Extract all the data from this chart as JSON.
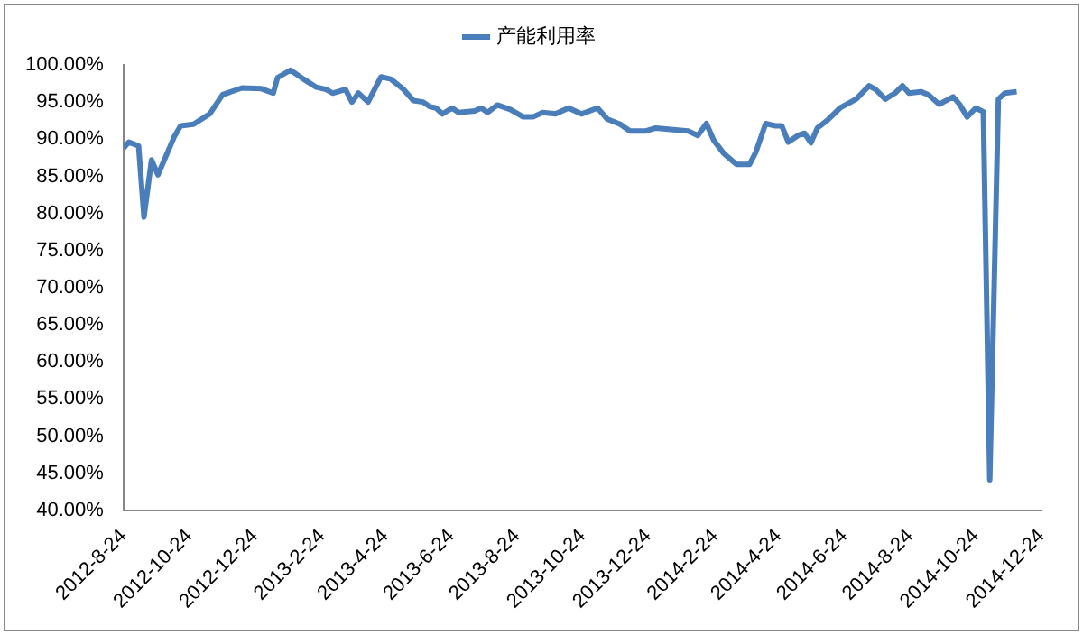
{
  "chart_data": {
    "type": "line",
    "legend": "top",
    "grid": false,
    "marker": "none",
    "line_style": "solid",
    "x": [
      "2012-08-24",
      "2012-08-29",
      "2012-09-07",
      "2012-09-12",
      "2012-09-19",
      "2012-09-25",
      "2012-10-10",
      "2012-10-16",
      "2012-10-28",
      "2012-11-12",
      "2012-11-24",
      "2012-12-12",
      "2012-12-30",
      "2013-01-10",
      "2013-01-14",
      "2013-01-26",
      "2013-02-07",
      "2013-02-19",
      "2013-02-28",
      "2013-03-06",
      "2013-03-18",
      "2013-03-24",
      "2013-03-30",
      "2013-04-08",
      "2013-04-20",
      "2013-04-29",
      "2013-05-11",
      "2013-05-20",
      "2013-05-29",
      "2013-06-04",
      "2013-06-10",
      "2013-06-16",
      "2013-06-25",
      "2013-07-01",
      "2013-07-16",
      "2013-07-22",
      "2013-07-28",
      "2013-08-06",
      "2013-08-18",
      "2013-08-30",
      "2013-09-08",
      "2013-09-17",
      "2013-09-29",
      "2013-10-11",
      "2013-10-23",
      "2013-11-07",
      "2013-11-16",
      "2013-11-28",
      "2013-12-07",
      "2013-12-22",
      "2013-12-31",
      "2014-01-30",
      "2014-02-08",
      "2014-02-16",
      "2014-02-23",
      "2014-03-04",
      "2014-03-16",
      "2014-03-28",
      "2014-04-03",
      "2014-04-12",
      "2014-04-21",
      "2014-04-27",
      "2014-05-03",
      "2014-05-12",
      "2014-05-18",
      "2014-05-24",
      "2014-05-30",
      "2014-06-08",
      "2014-06-20",
      "2014-07-05",
      "2014-07-17",
      "2014-07-23",
      "2014-08-01",
      "2014-08-10",
      "2014-08-17",
      "2014-08-23",
      "2014-09-03",
      "2014-09-10",
      "2014-09-20",
      "2014-10-03",
      "2014-10-09",
      "2014-10-16",
      "2014-10-24",
      "2014-10-31",
      "2014-11-06",
      "2014-11-14",
      "2014-11-20",
      "2014-12-01"
    ],
    "series": [
      {
        "name": "产能利用率",
        "color": "#4a7ebb",
        "values": [
          88.8,
          89.6,
          89.1,
          79.5,
          87.2,
          85.2,
          90.3,
          91.8,
          92.0,
          93.4,
          96.0,
          96.9,
          96.8,
          96.2,
          98.3,
          99.3,
          98.1,
          97.0,
          96.7,
          96.2,
          96.7,
          95.0,
          96.2,
          95.0,
          98.4,
          98.1,
          96.7,
          95.2,
          95.0,
          94.4,
          94.2,
          93.4,
          94.2,
          93.6,
          93.8,
          94.2,
          93.6,
          94.6,
          94.0,
          93.0,
          93.0,
          93.6,
          93.4,
          94.2,
          93.4,
          94.2,
          92.7,
          92.0,
          91.1,
          91.1,
          91.5,
          91.1,
          90.5,
          92.1,
          89.8,
          88.1,
          86.6,
          86.6,
          88.3,
          92.1,
          91.8,
          91.8,
          89.6,
          90.5,
          90.8,
          89.5,
          91.5,
          92.5,
          94.2,
          95.4,
          97.2,
          96.7,
          95.4,
          96.2,
          97.2,
          96.2,
          96.4,
          96.0,
          94.7,
          95.7,
          94.7,
          93.0,
          94.2,
          93.7,
          44.1,
          95.4,
          96.2,
          96.4
        ]
      }
    ],
    "xlim": [
      "2012-08-24",
      "2014-12-24"
    ],
    "xticks": [
      {
        "value": "2012-08-24",
        "label": "2012-8-24"
      },
      {
        "value": "2012-10-24",
        "label": "2012-10-24"
      },
      {
        "value": "2012-12-24",
        "label": "2012-12-24"
      },
      {
        "value": "2013-02-24",
        "label": "2013-2-24"
      },
      {
        "value": "2013-04-24",
        "label": "2013-4-24"
      },
      {
        "value": "2013-06-24",
        "label": "2013-6-24"
      },
      {
        "value": "2013-08-24",
        "label": "2013-8-24"
      },
      {
        "value": "2013-10-24",
        "label": "2013-10-24"
      },
      {
        "value": "2013-12-24",
        "label": "2013-12-24"
      },
      {
        "value": "2014-02-24",
        "label": "2014-2-24"
      },
      {
        "value": "2014-04-24",
        "label": "2014-4-24"
      },
      {
        "value": "2014-06-24",
        "label": "2014-6-24"
      },
      {
        "value": "2014-08-24",
        "label": "2014-8-24"
      },
      {
        "value": "2014-10-24",
        "label": "2014-10-24"
      },
      {
        "value": "2014-12-24",
        "label": "2014-12-24"
      }
    ],
    "ylim": [
      40,
      100
    ],
    "yticks": [
      {
        "value": 40,
        "label": "40.00%"
      },
      {
        "value": 45,
        "label": "45.00%"
      },
      {
        "value": 50,
        "label": "50.00%"
      },
      {
        "value": 55,
        "label": "55.00%"
      },
      {
        "value": 60,
        "label": "60.00%"
      },
      {
        "value": 65,
        "label": "65.00%"
      },
      {
        "value": 70,
        "label": "70.00%"
      },
      {
        "value": 75,
        "label": "75.00%"
      },
      {
        "value": 80,
        "label": "80.00%"
      },
      {
        "value": 85,
        "label": "85.00%"
      },
      {
        "value": 90,
        "label": "90.00%"
      },
      {
        "value": 95,
        "label": "95.00%"
      },
      {
        "value": 100,
        "label": "100.00%"
      }
    ]
  }
}
